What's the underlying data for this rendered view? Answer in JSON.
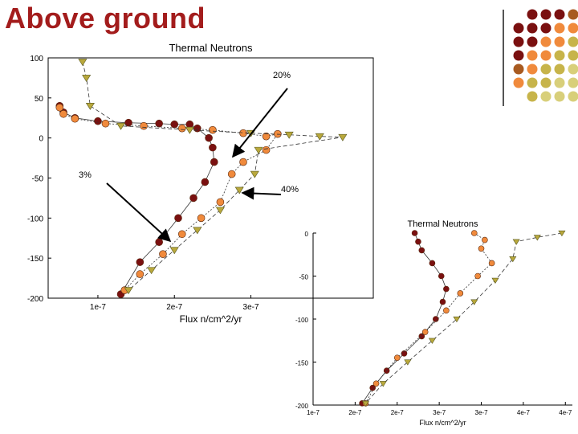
{
  "slide": {
    "title": "Above ground",
    "colors": {
      "title": "#a31c1c",
      "dark_red": "#7a1010",
      "orange": "#f08a3c",
      "olive": "#c7b44a",
      "khaki": "#d8cf7a",
      "brown": "#a85a20"
    }
  },
  "annotations": [
    {
      "label": "20%"
    },
    {
      "label": "3%"
    },
    {
      "label": "40%"
    }
  ],
  "chart_data": [
    {
      "type": "scatter",
      "title": "Thermal Neutrons",
      "xlabel": "Flux n/cm^2/yr",
      "ylabel": "",
      "x_ticks": [
        "1e-7",
        "2e-7",
        "3e-7"
      ],
      "y_ticks": [
        "100",
        "50",
        "0",
        "-50",
        "-100",
        "-150",
        "-200"
      ],
      "xlim": [
        3.5e-08,
        4.6e-07
      ],
      "ylim": [
        -200,
        100
      ],
      "series": [
        {
          "marker": "circle",
          "color": "#7a1010",
          "x": [
            5e-08,
            5.5e-08,
            7e-08,
            1e-07,
            1.4e-07,
            1.8e-07,
            2e-07,
            2.2e-07,
            2.3e-07,
            2.45e-07,
            2.5e-07,
            2.52e-07,
            2.4e-07,
            2.25e-07,
            2.05e-07,
            1.8e-07,
            1.55e-07,
            1.3e-07
          ],
          "y": [
            40,
            32,
            25,
            21,
            19,
            18,
            17,
            17,
            12,
            0,
            -12,
            -30,
            -55,
            -75,
            -100,
            -130,
            -155,
            -195
          ]
        },
        {
          "marker": "circle",
          "color": "#f08a3c",
          "x": [
            5e-08,
            5.5e-08,
            7e-08,
            1.1e-07,
            1.6e-07,
            2.1e-07,
            2.5e-07,
            2.9e-07,
            3.2e-07,
            3.35e-07,
            3.2e-07,
            2.9e-07,
            2.75e-07,
            2.6e-07,
            2.35e-07,
            2.1e-07,
            1.85e-07,
            1.55e-07,
            1.35e-07
          ],
          "y": [
            38,
            30,
            24,
            18,
            15,
            12,
            10,
            6,
            2,
            5,
            -15,
            -30,
            -45,
            -80,
            -100,
            -120,
            -145,
            -170,
            -190
          ]
        },
        {
          "marker": "triangle",
          "color": "#b9a83c",
          "x": [
            8e-08,
            8.5e-08,
            9e-08,
            1.3e-07,
            2.2e-07,
            3e-07,
            3.5e-07,
            3.9e-07,
            4.2e-07,
            3.1e-07,
            3.05e-07,
            2.85e-07,
            2.6e-07,
            2.3e-07,
            2e-07,
            1.7e-07,
            1.4e-07
          ],
          "y": [
            95,
            75,
            40,
            15,
            10,
            6,
            4,
            2,
            1,
            -15,
            -45,
            -65,
            -90,
            -115,
            -140,
            -165,
            -190
          ]
        }
      ]
    },
    {
      "type": "scatter",
      "title": "Thermal Neutrons",
      "xlabel": "Flux n/cm^2/yr",
      "ylabel": "",
      "x_ticks": [
        "1e-7",
        "2e-7",
        "2e-7",
        "3e-7",
        "3e-7",
        "4e-7",
        "4e-7"
      ],
      "y_ticks": [
        "0",
        "-50",
        "-100",
        "-150",
        "-200"
      ],
      "xlim": [
        1e-07,
        4.7e-07
      ],
      "ylim": [
        -200,
        0
      ],
      "series": [
        {
          "marker": "circle",
          "color": "#7a1010",
          "x": [
            2.45e-07,
            2.5e-07,
            2.55e-07,
            2.7e-07,
            2.83e-07,
            2.9e-07,
            2.85e-07,
            2.75e-07,
            2.55e-07,
            2.3e-07,
            2.05e-07,
            1.85e-07,
            1.7e-07
          ],
          "y": [
            0,
            -10,
            -20,
            -35,
            -50,
            -65,
            -80,
            -100,
            -120,
            -140,
            -160,
            -180,
            -198
          ]
        },
        {
          "marker": "circle",
          "color": "#f08a3c",
          "x": [
            3.3e-07,
            3.45e-07,
            3.4e-07,
            3.55e-07,
            3.35e-07,
            3.1e-07,
            2.9e-07,
            2.6e-07,
            2.2e-07,
            1.9e-07,
            1.75e-07
          ],
          "y": [
            0,
            -8,
            -18,
            -35,
            -50,
            -70,
            -90,
            -115,
            -145,
            -175,
            -198
          ]
        },
        {
          "marker": "triangle",
          "color": "#b9a83c",
          "x": [
            4.55e-07,
            4.2e-07,
            3.9e-07,
            3.85e-07,
            3.6e-07,
            3.3e-07,
            3.05e-07,
            2.7e-07,
            2.35e-07,
            2e-07,
            1.75e-07
          ],
          "y": [
            0,
            -5,
            -10,
            -30,
            -55,
            -80,
            -100,
            -125,
            -150,
            -175,
            -198
          ]
        }
      ]
    }
  ]
}
